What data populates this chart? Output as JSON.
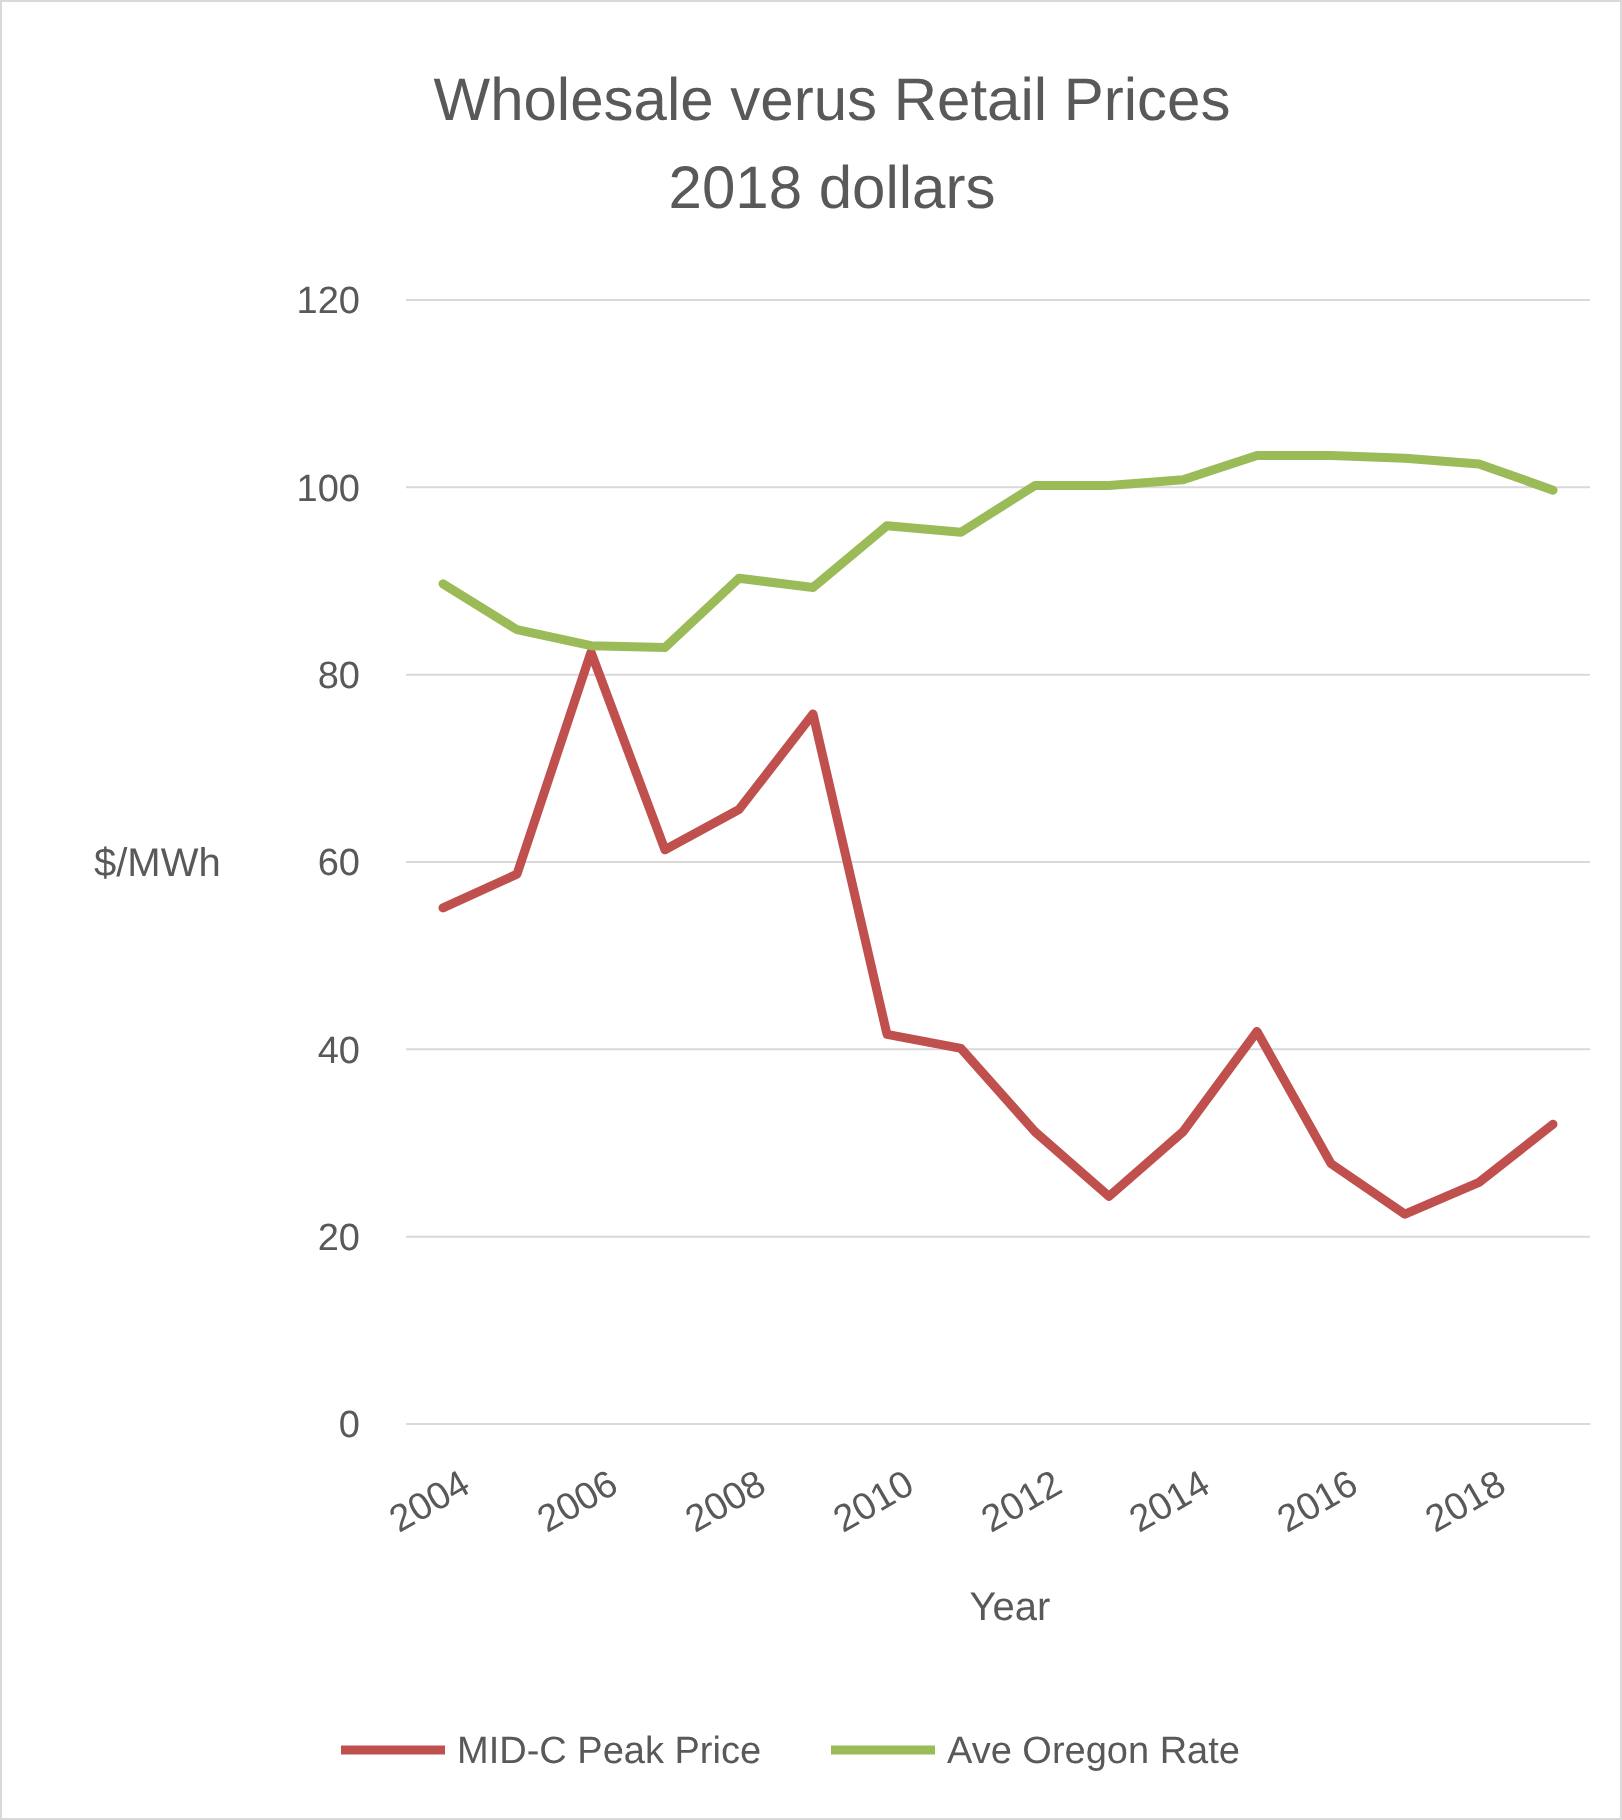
{
  "chart_data": {
    "type": "line",
    "title": "Wholesale verus Retail Prices\n2018 dollars",
    "xlabel": "Year",
    "ylabel": "$/MWh",
    "categories": [
      "2004",
      null,
      "2006",
      null,
      "2008",
      null,
      "2010",
      null,
      "2012",
      null,
      "2014",
      null,
      "2016",
      null,
      "2018",
      null
    ],
    "series": [
      {
        "name": "MID-C Peak Price",
        "color": "#c0504d",
        "values": [
          55.1,
          58.7,
          82.4,
          61.3,
          65.6,
          75.8,
          41.6,
          40.1,
          31.2,
          24.3,
          31.2,
          41.9,
          27.8,
          22.4,
          25.8,
          32.0
        ]
      },
      {
        "name": "Ave Oregon Rate",
        "color": "#9bbb59",
        "values": [
          89.7,
          84.8,
          83.1,
          82.9,
          90.3,
          89.3,
          95.9,
          95.2,
          100.2,
          100.2,
          100.8,
          103.4,
          103.4,
          103.1,
          102.5,
          99.7
        ]
      }
    ],
    "ylim": [
      0,
      120
    ],
    "yticks": [
      0,
      20,
      40,
      60,
      80,
      100,
      120
    ],
    "grid": "y",
    "legend": "bottom",
    "marker": "none",
    "line_style": "solid"
  }
}
